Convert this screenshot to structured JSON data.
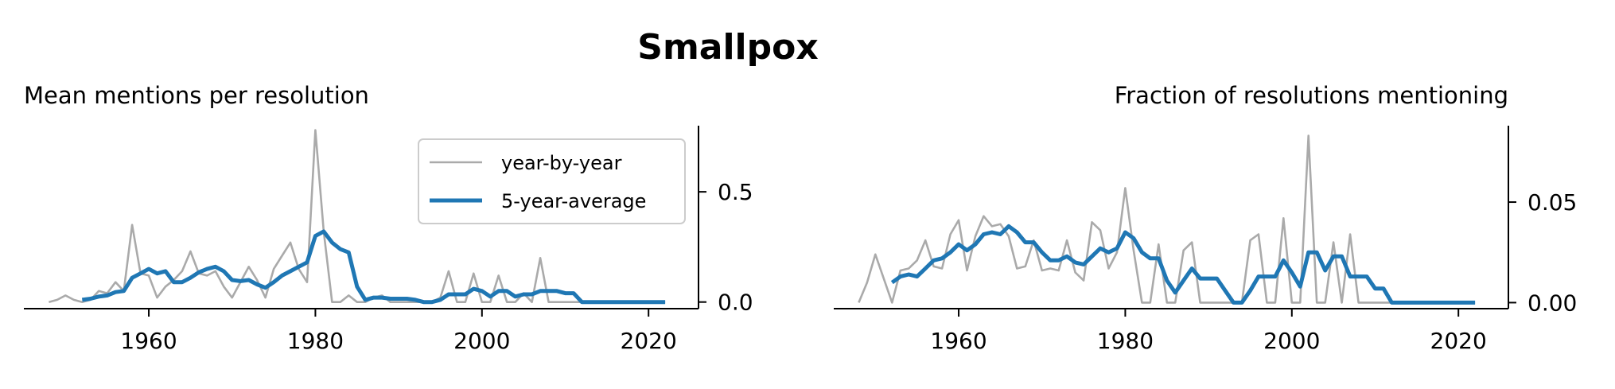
{
  "figure": {
    "title": "Smallpox"
  },
  "colors": {
    "yearly": "#aaaaaa",
    "average": "#1f77b4"
  },
  "chart_data": [
    {
      "type": "line",
      "title": "Mean mentions per resolution",
      "xlabel": "",
      "ylabel": "",
      "xlim": [
        1945,
        2026
      ],
      "ylim": [
        -0.03,
        0.8
      ],
      "x_ticks": [
        1960,
        1980,
        2000,
        2020
      ],
      "y_ticks": [
        0.0,
        0.5
      ],
      "y_tick_labels": [
        "0.0",
        "0.5"
      ],
      "y_axis_side": "right",
      "legend": {
        "placement": "upper-right",
        "entries": [
          "year-by-year",
          "5-year-average"
        ]
      },
      "series": [
        {
          "name": "year-by-year",
          "color": "#aaaaaa",
          "x": [
            1948,
            1949,
            1950,
            1951,
            1952,
            1953,
            1954,
            1955,
            1956,
            1957,
            1958,
            1959,
            1960,
            1961,
            1962,
            1963,
            1964,
            1965,
            1966,
            1967,
            1968,
            1969,
            1970,
            1971,
            1972,
            1973,
            1974,
            1975,
            1976,
            1977,
            1978,
            1979,
            1980,
            1981,
            1982,
            1983,
            1984,
            1985,
            1986,
            1987,
            1988,
            1989,
            1990,
            1991,
            1992,
            1993,
            1994,
            1995,
            1996,
            1997,
            1998,
            1999,
            2000,
            2001,
            2002,
            2003,
            2004,
            2005,
            2006,
            2007,
            2008,
            2009,
            2010,
            2011,
            2012,
            2013,
            2014,
            2015,
            2016,
            2017,
            2018,
            2019,
            2020,
            2021,
            2022
          ],
          "y": [
            0.0,
            0.01,
            0.03,
            0.01,
            0.0,
            0.01,
            0.05,
            0.04,
            0.09,
            0.05,
            0.35,
            0.13,
            0.12,
            0.02,
            0.07,
            0.1,
            0.14,
            0.23,
            0.13,
            0.12,
            0.14,
            0.07,
            0.02,
            0.09,
            0.16,
            0.1,
            0.02,
            0.15,
            0.21,
            0.27,
            0.15,
            0.09,
            0.78,
            0.32,
            0.0,
            0.0,
            0.03,
            0.0,
            0.0,
            0.02,
            0.03,
            0.0,
            0.0,
            0.0,
            0.0,
            0.0,
            0.0,
            0.02,
            0.14,
            0.0,
            0.0,
            0.13,
            0.0,
            0.0,
            0.12,
            0.0,
            0.0,
            0.04,
            0.0,
            0.2,
            0.0,
            0.0,
            0.0,
            0.0,
            0.0,
            0.0,
            0.0,
            0.0,
            0.0,
            0.0,
            0.0,
            0.0,
            0.0,
            0.0,
            0.0
          ]
        },
        {
          "name": "5-year-average",
          "color": "#1f77b4",
          "x": [
            1952,
            1953,
            1954,
            1955,
            1956,
            1957,
            1958,
            1959,
            1960,
            1961,
            1962,
            1963,
            1964,
            1965,
            1966,
            1967,
            1968,
            1969,
            1970,
            1971,
            1972,
            1973,
            1974,
            1975,
            1976,
            1977,
            1978,
            1979,
            1980,
            1981,
            1982,
            1983,
            1984,
            1985,
            1986,
            1987,
            1988,
            1989,
            1990,
            1991,
            1992,
            1993,
            1994,
            1995,
            1996,
            1997,
            1998,
            1999,
            2000,
            2001,
            2002,
            2003,
            2004,
            2005,
            2006,
            2007,
            2008,
            2009,
            2010,
            2011,
            2012,
            2013,
            2014,
            2015,
            2016,
            2017,
            2018,
            2019,
            2020,
            2021,
            2022
          ],
          "y": [
            0.01,
            0.015,
            0.025,
            0.03,
            0.045,
            0.05,
            0.11,
            0.13,
            0.15,
            0.13,
            0.14,
            0.09,
            0.09,
            0.11,
            0.135,
            0.15,
            0.16,
            0.14,
            0.1,
            0.095,
            0.1,
            0.08,
            0.065,
            0.09,
            0.12,
            0.14,
            0.16,
            0.18,
            0.3,
            0.32,
            0.27,
            0.24,
            0.225,
            0.07,
            0.01,
            0.02,
            0.02,
            0.015,
            0.015,
            0.015,
            0.01,
            0.0,
            0.0,
            0.01,
            0.035,
            0.035,
            0.035,
            0.06,
            0.05,
            0.025,
            0.05,
            0.05,
            0.025,
            0.035,
            0.035,
            0.05,
            0.05,
            0.05,
            0.04,
            0.04,
            0.0,
            0.0,
            0.0,
            0.0,
            0.0,
            0.0,
            0.0,
            0.0,
            0.0,
            0.0,
            0.0
          ]
        }
      ]
    },
    {
      "type": "line",
      "title": "Fraction of resolutions mentioning",
      "xlabel": "",
      "ylabel": "",
      "xlim": [
        1945,
        2026
      ],
      "ylim": [
        -0.003,
        0.088
      ],
      "x_ticks": [
        1960,
        1980,
        2000,
        2020
      ],
      "y_ticks": [
        0.0,
        0.05
      ],
      "y_tick_labels": [
        "0.00",
        "0.05"
      ],
      "y_axis_side": "right",
      "series": [
        {
          "name": "year-by-year",
          "color": "#aaaaaa",
          "x": [
            1948,
            1949,
            1950,
            1951,
            1952,
            1953,
            1954,
            1955,
            1956,
            1957,
            1958,
            1959,
            1960,
            1961,
            1962,
            1963,
            1964,
            1965,
            1966,
            1967,
            1968,
            1969,
            1970,
            1971,
            1972,
            1973,
            1974,
            1975,
            1976,
            1977,
            1978,
            1979,
            1980,
            1981,
            1982,
            1983,
            1984,
            1985,
            1986,
            1987,
            1988,
            1989,
            1990,
            1991,
            1992,
            1993,
            1994,
            1995,
            1996,
            1997,
            1998,
            1999,
            2000,
            2001,
            2002,
            2003,
            2004,
            2005,
            2006,
            2007,
            2008,
            2009,
            2010,
            2011,
            2012,
            2013,
            2014,
            2015,
            2016,
            2017,
            2018,
            2019,
            2020,
            2021,
            2022
          ],
          "y": [
            0.0,
            0.01,
            0.024,
            0.012,
            0.0,
            0.016,
            0.017,
            0.021,
            0.031,
            0.018,
            0.017,
            0.034,
            0.041,
            0.016,
            0.033,
            0.043,
            0.038,
            0.039,
            0.033,
            0.017,
            0.018,
            0.031,
            0.016,
            0.017,
            0.016,
            0.031,
            0.015,
            0.011,
            0.04,
            0.036,
            0.017,
            0.025,
            0.057,
            0.026,
            0.0,
            0.0,
            0.029,
            0.0,
            0.0,
            0.026,
            0.03,
            0.0,
            0.0,
            0.0,
            0.0,
            0.0,
            0.0,
            0.031,
            0.034,
            0.0,
            0.0,
            0.042,
            0.0,
            0.0,
            0.083,
            0.0,
            0.0,
            0.03,
            0.0,
            0.034,
            0.0,
            0.0,
            0.0,
            0.0,
            0.0,
            0.0,
            0.0,
            0.0,
            0.0,
            0.0,
            0.0,
            0.0,
            0.0,
            0.0,
            0.0
          ]
        },
        {
          "name": "5-year-average",
          "color": "#1f77b4",
          "x": [
            1952,
            1953,
            1954,
            1955,
            1956,
            1957,
            1958,
            1959,
            1960,
            1961,
            1962,
            1963,
            1964,
            1965,
            1966,
            1967,
            1968,
            1969,
            1970,
            1971,
            1972,
            1973,
            1974,
            1975,
            1976,
            1977,
            1978,
            1979,
            1980,
            1981,
            1982,
            1983,
            1984,
            1985,
            1986,
            1987,
            1988,
            1989,
            1990,
            1991,
            1992,
            1993,
            1994,
            1995,
            1996,
            1997,
            1998,
            1999,
            2000,
            2001,
            2002,
            2003,
            2004,
            2005,
            2006,
            2007,
            2008,
            2009,
            2010,
            2011,
            2012,
            2013,
            2014,
            2015,
            2016,
            2017,
            2018,
            2019,
            2020,
            2021,
            2022
          ],
          "y": [
            0.01,
            0.013,
            0.014,
            0.013,
            0.017,
            0.021,
            0.022,
            0.025,
            0.029,
            0.026,
            0.029,
            0.034,
            0.035,
            0.034,
            0.038,
            0.035,
            0.03,
            0.03,
            0.025,
            0.021,
            0.021,
            0.023,
            0.02,
            0.019,
            0.023,
            0.027,
            0.025,
            0.027,
            0.035,
            0.032,
            0.025,
            0.022,
            0.022,
            0.011,
            0.005,
            0.011,
            0.017,
            0.012,
            0.012,
            0.012,
            0.006,
            0.0,
            0.0,
            0.006,
            0.013,
            0.013,
            0.013,
            0.021,
            0.015,
            0.008,
            0.025,
            0.025,
            0.016,
            0.023,
            0.023,
            0.013,
            0.013,
            0.013,
            0.007,
            0.007,
            0.0,
            0.0,
            0.0,
            0.0,
            0.0,
            0.0,
            0.0,
            0.0,
            0.0,
            0.0,
            0.0
          ]
        }
      ]
    }
  ]
}
